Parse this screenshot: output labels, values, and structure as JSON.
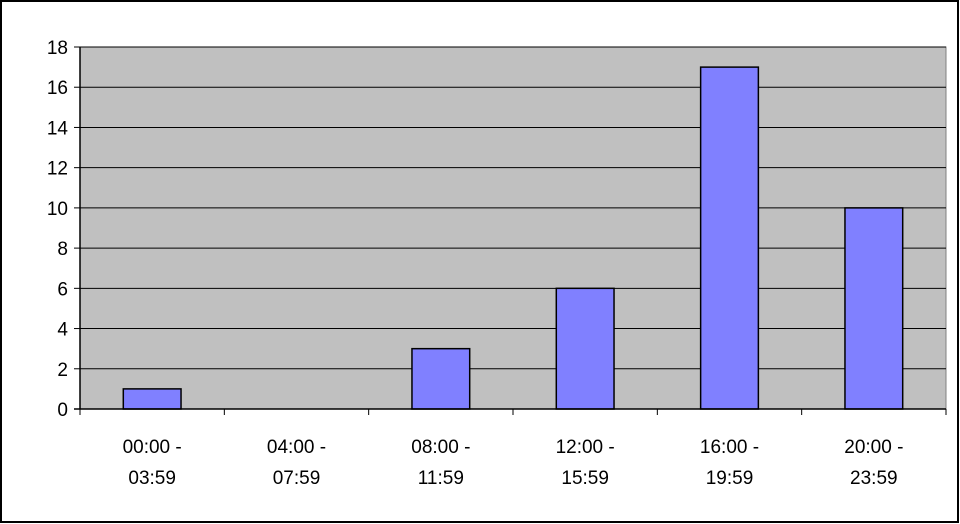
{
  "chart_data": {
    "type": "bar",
    "categories": [
      [
        "00:00 -",
        "03:59"
      ],
      [
        "04:00 -",
        "07:59"
      ],
      [
        "08:00 -",
        "11:59"
      ],
      [
        "12:00 -",
        "15:59"
      ],
      [
        "16:00 -",
        "19:59"
      ],
      [
        "20:00 -",
        "23:59"
      ]
    ],
    "values": [
      1,
      0,
      3,
      6,
      17,
      10
    ],
    "ylim": [
      0,
      18
    ],
    "yticks": [
      0,
      2,
      4,
      6,
      8,
      10,
      12,
      14,
      16,
      18
    ],
    "grid": true,
    "legend": "none"
  },
  "colors": {
    "plot_background": "#c0c0c0",
    "bar_fill": "#8080ff",
    "bar_stroke": "#000000",
    "gridline": "#000000"
  }
}
